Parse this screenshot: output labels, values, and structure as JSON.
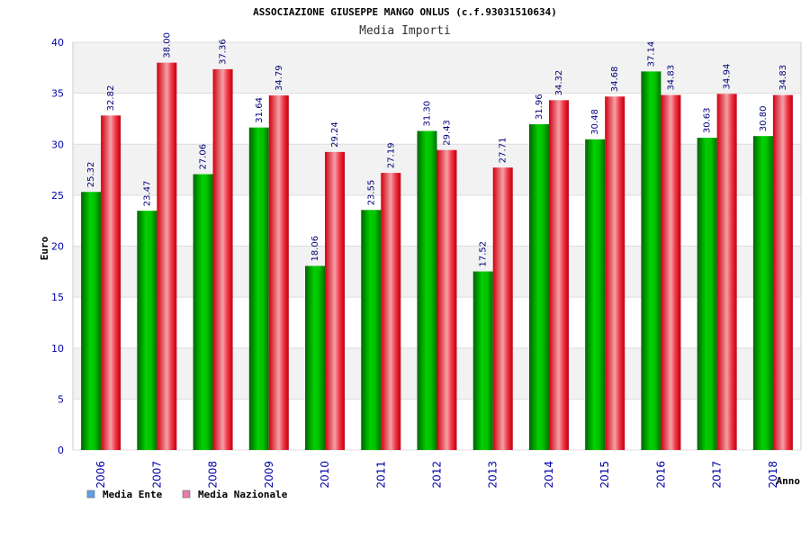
{
  "chart_data": {
    "type": "bar",
    "title": "ASSOCIAZIONE GIUSEPPE MANGO ONLUS (c.f.93031510634)",
    "subtitle": "Media Importi",
    "xlabel": "Anno",
    "ylabel": "Euro",
    "ylim": [
      0,
      40
    ],
    "yticks": [
      0,
      5,
      10,
      15,
      20,
      25,
      30,
      35,
      40
    ],
    "categories": [
      "2006",
      "2007",
      "2008",
      "2009",
      "2010",
      "2011",
      "2012",
      "2013",
      "2014",
      "2015",
      "2016",
      "2017",
      "2018"
    ],
    "series": [
      {
        "name": "Media Ente",
        "color": "#00b400",
        "legend_color": "#5fa0e8",
        "values": [
          25.32,
          23.47,
          27.06,
          31.64,
          18.06,
          23.55,
          31.3,
          17.52,
          31.96,
          30.48,
          37.14,
          30.63,
          30.8
        ],
        "labels": [
          "25.32",
          "23.47",
          "27.06",
          "31.64",
          "18.06",
          "23.55",
          "31.30",
          "17.52",
          "31.96",
          "30.48",
          "37.14",
          "30.63",
          "30.80"
        ]
      },
      {
        "name": "Media Nazionale",
        "color": "#ee1122",
        "legend_color": "#e87ab0",
        "values": [
          32.82,
          38.0,
          37.36,
          34.79,
          29.24,
          27.19,
          29.43,
          27.71,
          34.32,
          34.68,
          34.83,
          34.94,
          34.83
        ],
        "labels": [
          "32.82",
          "38.00",
          "37.36",
          "34.79",
          "29.24",
          "27.19",
          "29.43",
          "27.71",
          "34.32",
          "34.68",
          "34.83",
          "34.94",
          "34.83"
        ]
      }
    ],
    "grid": true,
    "legend_position": "bottom-left"
  }
}
